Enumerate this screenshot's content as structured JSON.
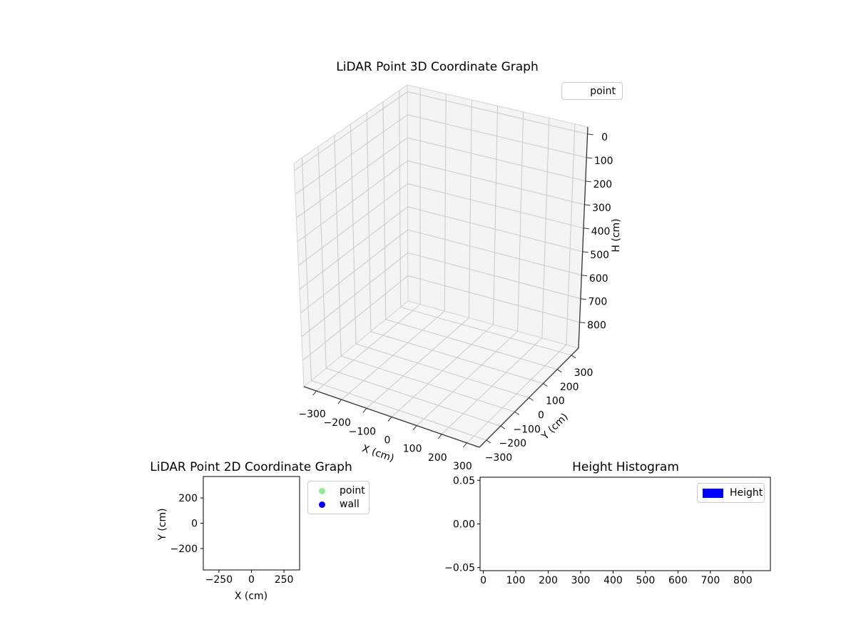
{
  "palette": {
    "background": "#ffffff",
    "text": "#000000",
    "pane_fill": "#f4f4f4",
    "pane_floor": "#f6f6f6",
    "pane_edge": "#d4d4d4",
    "grid_line": "#c9c9c9",
    "axis_line_3d": "#333333",
    "axis_line_2d": "#000000",
    "legend_border": "#cccccc",
    "legend_bg": "#ffffff",
    "point_color": "#90ee90",
    "wall_color": "#0000ff",
    "height_color": "#0000ff"
  },
  "chart_data": [
    {
      "id": "lidar-3d",
      "type": "scatter",
      "projection": "3d",
      "title": "LiDAR Point 3D Coordinate Graph",
      "xlabel": "X (cm)",
      "ylabel": "Y (cm)",
      "zlabel": "H (cm)",
      "xlim": [
        -350,
        350
      ],
      "ylim": [
        -350,
        350
      ],
      "zlim": [
        -30,
        910
      ],
      "z_inverted": true,
      "x_tick_values": [
        -300,
        -200,
        -100,
        0,
        100,
        200,
        300
      ],
      "x_tick_labels": [
        "−300",
        "−200",
        "−100",
        "0",
        "100",
        "200",
        "300"
      ],
      "y_tick_values": [
        -300,
        -200,
        -100,
        0,
        100,
        200,
        300
      ],
      "y_tick_labels": [
        "−300",
        "−200",
        "−100",
        "0",
        "100",
        "200",
        "300"
      ],
      "z_tick_values": [
        0,
        100,
        200,
        300,
        400,
        500,
        600,
        700,
        800
      ],
      "z_tick_labels": [
        "0",
        "100",
        "200",
        "300",
        "400",
        "500",
        "600",
        "700",
        "800"
      ],
      "grid": true,
      "legend_position": "upper right",
      "legend": [
        {
          "label": "point",
          "marker": "none"
        }
      ],
      "series": [
        {
          "name": "point",
          "points": []
        }
      ]
    },
    {
      "id": "lidar-2d",
      "type": "scatter",
      "title": "LiDAR Point 2D Coordinate Graph",
      "xlabel": "X (cm)",
      "ylabel": "Y (cm)",
      "xlim": [
        -370,
        370
      ],
      "ylim": [
        -370,
        370
      ],
      "x_tick_values": [
        -250,
        0,
        250
      ],
      "x_tick_labels": [
        "−250",
        "0",
        "250"
      ],
      "y_tick_values": [
        200,
        0,
        -200
      ],
      "y_tick_labels": [
        "200",
        "0",
        "−200"
      ],
      "grid": false,
      "legend_position": "outside upper right",
      "legend": [
        {
          "label": "point",
          "color": "#90ee90"
        },
        {
          "label": "wall",
          "color": "#0000ff"
        }
      ],
      "series": [
        {
          "name": "point",
          "color": "#90ee90",
          "points": []
        },
        {
          "name": "wall",
          "color": "#0000ff",
          "points": []
        }
      ]
    },
    {
      "id": "height-histogram",
      "type": "bar",
      "title": "Height Histogram",
      "xlabel": "",
      "ylabel": "",
      "xlim": [
        -10,
        885
      ],
      "ylim": [
        -0.0535,
        0.0535
      ],
      "x_tick_values": [
        0,
        100,
        200,
        300,
        400,
        500,
        600,
        700,
        800
      ],
      "x_tick_labels": [
        "0",
        "100",
        "200",
        "300",
        "400",
        "500",
        "600",
        "700",
        "800"
      ],
      "y_tick_values": [
        0.05,
        0,
        -0.05
      ],
      "y_tick_labels": [
        "0.05",
        "0.00",
        "−0.05"
      ],
      "grid": false,
      "legend_position": "upper right",
      "legend": [
        {
          "label": "Height",
          "color": "#0000ff"
        }
      ],
      "series": [
        {
          "name": "Height",
          "color": "#0000ff",
          "values": []
        }
      ]
    }
  ]
}
